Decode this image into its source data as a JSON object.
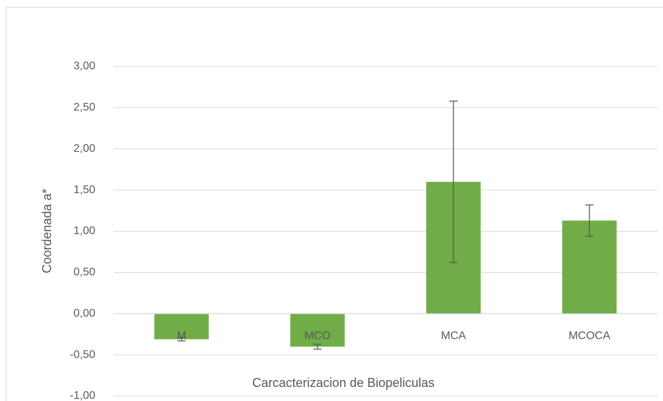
{
  "chart_data": {
    "type": "bar",
    "x_label": "Carcacterizacion de Biopeliculas",
    "y_label": "Coordenada a*",
    "categories": [
      "M",
      "MCO",
      "MCA",
      "MCOCA"
    ],
    "values": [
      -0.31,
      -0.4,
      1.6,
      1.13
    ],
    "errors": [
      0.02,
      0.03,
      0.98,
      0.19
    ],
    "color": "#70ad47",
    "ylim": [
      -1.0,
      3.0
    ],
    "yticks": [
      {
        "value": -1.0,
        "label": "-1,00"
      },
      {
        "value": -0.5,
        "label": "-0,50"
      },
      {
        "value": 0,
        "label": "0,00"
      },
      {
        "value": 0.5,
        "label": "0,50"
      },
      {
        "value": 1.0,
        "label": "1,00"
      },
      {
        "value": 1.5,
        "label": "1,50"
      },
      {
        "value": 2.0,
        "label": "2,00"
      },
      {
        "value": 2.5,
        "label": "2,50"
      },
      {
        "value": 3.0,
        "label": "3,00"
      }
    ],
    "grid": true
  }
}
